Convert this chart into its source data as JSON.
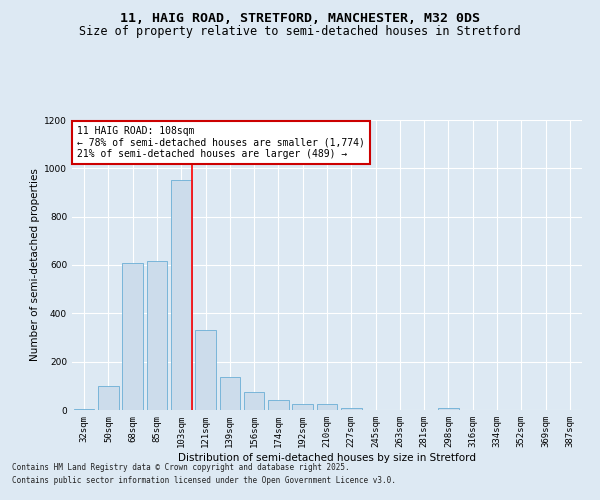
{
  "title_line1": "11, HAIG ROAD, STRETFORD, MANCHESTER, M32 0DS",
  "title_line2": "Size of property relative to semi-detached houses in Stretford",
  "xlabel": "Distribution of semi-detached houses by size in Stretford",
  "ylabel": "Number of semi-detached properties",
  "categories": [
    "32sqm",
    "50sqm",
    "68sqm",
    "85sqm",
    "103sqm",
    "121sqm",
    "139sqm",
    "156sqm",
    "174sqm",
    "192sqm",
    "210sqm",
    "227sqm",
    "245sqm",
    "263sqm",
    "281sqm",
    "298sqm",
    "316sqm",
    "334sqm",
    "352sqm",
    "369sqm",
    "387sqm"
  ],
  "values": [
    5,
    100,
    610,
    615,
    950,
    330,
    135,
    75,
    42,
    25,
    25,
    10,
    0,
    0,
    0,
    8,
    0,
    0,
    0,
    0,
    0
  ],
  "bar_color": "#ccdceb",
  "bar_edge_color": "#6aaed6",
  "red_line_index": 4,
  "annotation_title": "11 HAIG ROAD: 108sqm",
  "annotation_line2": "← 78% of semi-detached houses are smaller (1,774)",
  "annotation_line3": "21% of semi-detached houses are larger (489) →",
  "ylim": [
    0,
    1200
  ],
  "yticks": [
    0,
    200,
    400,
    600,
    800,
    1000,
    1200
  ],
  "footer_line1": "Contains HM Land Registry data © Crown copyright and database right 2025.",
  "footer_line2": "Contains public sector information licensed under the Open Government Licence v3.0.",
  "bg_color": "#dde9f3",
  "plot_bg_color": "#dde9f3",
  "grid_color": "#ffffff",
  "annotation_box_color": "#ffffff",
  "annotation_box_edge": "#cc0000",
  "title1_fontsize": 9.5,
  "title2_fontsize": 8.5,
  "axis_label_fontsize": 7.5,
  "tick_fontsize": 6.5,
  "annotation_fontsize": 7,
  "footer_fontsize": 5.5
}
